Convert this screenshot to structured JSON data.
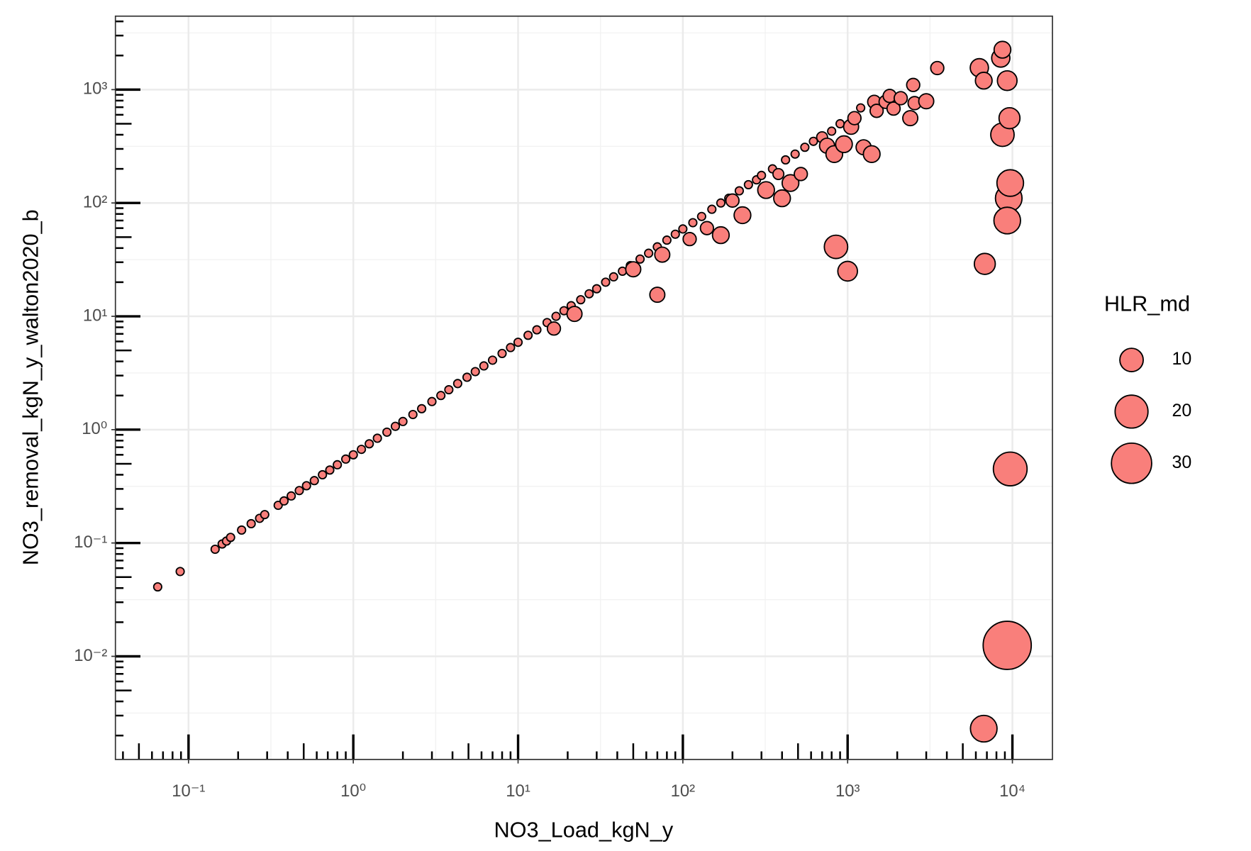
{
  "chart_data": {
    "type": "scatter",
    "x_label": "NO3_Load_kgN_y",
    "y_label": "NO3_removal_kgN_y_walton2020_b",
    "log_x": true,
    "log_y": true,
    "grid": true,
    "color": "#f97f7b",
    "xlim": [
      0.036,
      17500
    ],
    "ylim": [
      0.00123,
      4450
    ],
    "xticks": [
      {
        "value": 0.1,
        "label": "10⁻¹"
      },
      {
        "value": 1,
        "label": "10⁰"
      },
      {
        "value": 10,
        "label": "10¹"
      },
      {
        "value": 100,
        "label": "10²"
      },
      {
        "value": 1000,
        "label": "10³"
      },
      {
        "value": 10000,
        "label": "10⁴"
      }
    ],
    "yticks": [
      {
        "value": 0.01,
        "label": "10⁻²"
      },
      {
        "value": 0.1,
        "label": "10⁻¹"
      },
      {
        "value": 1,
        "label": "10⁰"
      },
      {
        "value": 10,
        "label": "10¹"
      },
      {
        "value": 100,
        "label": "10²"
      },
      {
        "value": 1000,
        "label": "10³"
      }
    ],
    "size_title": "HLR_md",
    "size_legend": [
      10,
      20,
      30
    ],
    "legend_position": "right",
    "x": [
      0.065,
      0.089,
      0.145,
      0.16,
      0.17,
      0.18,
      0.21,
      0.24,
      0.27,
      0.29,
      0.35,
      0.38,
      0.42,
      0.47,
      0.52,
      0.58,
      0.65,
      0.72,
      0.8,
      0.9,
      1.0,
      1.12,
      1.25,
      1.4,
      1.6,
      1.8,
      2.0,
      2.3,
      2.6,
      3.0,
      3.4,
      3.8,
      4.3,
      4.9,
      5.5,
      6.2,
      7.0,
      8.0,
      9.0,
      10,
      11.5,
      13,
      15,
      16.5,
      17,
      19,
      21,
      22,
      24,
      27,
      30,
      34,
      38,
      43,
      48,
      50,
      55,
      62,
      70,
      70,
      75,
      80,
      90,
      100,
      110,
      115,
      130,
      140,
      150,
      170,
      170,
      190,
      200,
      220,
      230,
      250,
      280,
      300,
      320,
      350,
      380,
      400,
      420,
      450,
      480,
      520,
      550,
      620,
      700,
      750,
      800,
      830,
      850,
      900,
      950,
      1000,
      1050,
      1100,
      1200,
      1250,
      1400,
      1450,
      1500,
      1700,
      1800,
      1900,
      2100,
      2400,
      2500,
      2550,
      3000,
      3500,
      6300,
      6700,
      6800,
      6700,
      8500,
      8700,
      8700,
      9300,
      9500,
      9700,
      9600,
      9300,
      9700,
      9300
    ],
    "values": [
      0.041,
      0.056,
      0.088,
      0.098,
      0.104,
      0.112,
      0.13,
      0.148,
      0.165,
      0.178,
      0.215,
      0.235,
      0.26,
      0.29,
      0.32,
      0.355,
      0.4,
      0.44,
      0.49,
      0.55,
      0.6,
      0.67,
      0.75,
      0.84,
      0.95,
      1.07,
      1.18,
      1.36,
      1.53,
      1.77,
      2.0,
      2.25,
      2.55,
      2.9,
      3.25,
      3.65,
      4.1,
      4.7,
      5.3,
      5.9,
      6.8,
      7.6,
      8.8,
      7.8,
      10,
      11.2,
      12.4,
      10.5,
      14,
      15.8,
      17.5,
      20,
      22.3,
      25,
      28,
      26,
      32,
      36,
      41,
      15.5,
      35,
      47,
      53,
      59,
      48,
      67,
      76,
      60,
      88,
      100,
      52,
      110,
      105,
      128,
      78,
      145,
      160,
      175,
      130,
      200,
      180,
      110,
      240,
      150,
      270,
      180,
      310,
      350,
      380,
      320,
      430,
      270,
      41,
      500,
      330,
      25,
      470,
      560,
      690,
      310,
      270,
      780,
      650,
      780,
      880,
      680,
      840,
      560,
      1100,
      760,
      790,
      1550,
      1560,
      1200,
      29,
      0.0023,
      1900,
      2250,
      400,
      1200,
      110,
      150,
      560,
      70,
      0.45,
      0.0125
    ],
    "size": [
      1,
      1,
      1,
      1,
      1,
      1,
      1,
      1,
      1,
      1,
      1,
      1,
      1,
      1,
      1,
      1,
      1,
      1,
      1,
      1,
      1,
      1,
      1,
      1,
      1,
      1,
      1,
      1,
      1,
      1,
      1,
      1,
      1,
      1,
      1,
      1,
      1,
      1,
      1,
      1,
      1,
      1,
      1,
      3,
      1,
      1,
      1,
      4,
      1,
      1,
      1,
      1,
      1,
      1,
      1,
      4,
      1,
      1,
      1,
      4,
      4,
      1,
      1,
      1,
      3,
      1,
      1,
      3,
      1,
      1,
      5,
      1,
      3,
      1,
      5,
      1,
      1,
      1,
      5,
      1,
      2,
      5,
      1,
      5,
      1,
      3,
      1,
      1,
      2,
      4,
      1,
      5,
      10,
      1,
      5,
      7,
      4,
      3,
      1,
      4,
      5,
      3,
      3,
      3,
      3,
      3,
      3,
      4,
      3,
      3,
      4,
      3,
      6,
      5,
      8,
      13,
      6,
      5,
      10,
      7,
      13,
      13,
      8,
      13,
      21,
      43
    ]
  }
}
